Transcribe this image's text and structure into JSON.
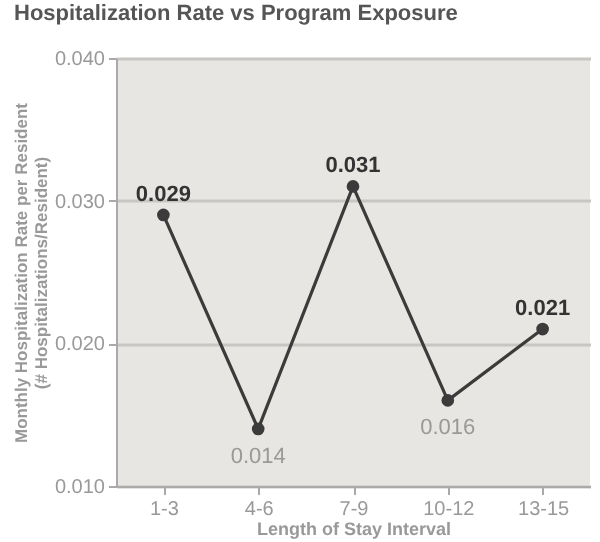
{
  "chart_data": {
    "type": "line",
    "title": "Hospitalization Rate vs Program Exposure",
    "xlabel": "Length of Stay Interval",
    "ylabel": "Monthly Hospitalization Rate per Resident\n(# Hospitalizations/Resident)",
    "categories": [
      "1-3",
      "4-6",
      "7-9",
      "10-12",
      "13-15"
    ],
    "series": [
      {
        "color": "#3b3b3b",
        "values": [
          0.029,
          0.014,
          0.031,
          0.016,
          0.021
        ]
      }
    ],
    "ylim": [
      0.01,
      0.04
    ],
    "yticks": [
      {
        "value": 0.01,
        "label": "0.010"
      },
      {
        "value": 0.02,
        "label": "0.020"
      },
      {
        "value": 0.03,
        "label": "0.030"
      },
      {
        "value": 0.04,
        "label": "0.040"
      }
    ],
    "grid": "y",
    "marker": "circle",
    "line_style": "solid",
    "data_labels": true
  }
}
